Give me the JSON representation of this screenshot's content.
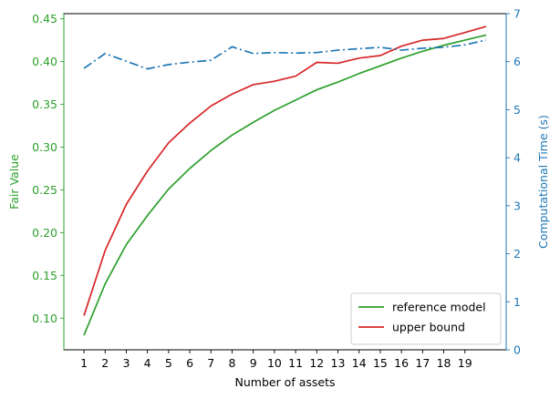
{
  "chart_data": {
    "type": "line",
    "xlabel": "Number of assets",
    "ylabel_left": "Fair Value",
    "ylabel_right": "Computational Time (s)",
    "x": [
      1,
      2,
      3,
      4,
      5,
      6,
      7,
      8,
      9,
      10,
      11,
      12,
      13,
      14,
      15,
      16,
      17,
      18,
      19,
      20
    ],
    "x_ticks": [
      "1",
      "2",
      "3",
      "4",
      "5",
      "6",
      "7",
      "8",
      "9",
      "10",
      "11",
      "12",
      "13",
      "14",
      "15",
      "16",
      "17",
      "18",
      "19"
    ],
    "xlim": [
      0.05,
      20.95
    ],
    "ylim_left": [
      0.063,
      0.456
    ],
    "ylim_right": [
      0,
      7
    ],
    "y_left_ticks": [
      "0.10",
      "0.15",
      "0.20",
      "0.25",
      "0.30",
      "0.35",
      "0.40",
      "0.45"
    ],
    "y_right_ticks": [
      "0",
      "1",
      "2",
      "3",
      "4",
      "5",
      "6",
      "7"
    ],
    "left_axis_color": "#2ca02c",
    "right_axis_color": "#1f77b4",
    "legend_position": "lower right",
    "series": [
      {
        "name": "reference model",
        "axis": "left",
        "color": "#2ca02c",
        "style": "solid",
        "values": [
          0.08,
          0.14,
          0.186,
          0.22,
          0.251,
          0.275,
          0.296,
          0.314,
          0.329,
          0.343,
          0.355,
          0.367,
          0.376,
          0.386,
          0.395,
          0.404,
          0.412,
          0.419,
          0.425,
          0.431
        ]
      },
      {
        "name": "upper bound",
        "axis": "left",
        "color": "#d62728",
        "style": "solid",
        "values": [
          0.103,
          0.179,
          0.233,
          0.272,
          0.305,
          0.328,
          0.348,
          0.362,
          0.373,
          0.377,
          0.383,
          0.399,
          0.398,
          0.404,
          0.407,
          0.418,
          0.425,
          0.427,
          0.434,
          0.441
        ]
      },
      {
        "axis": "right",
        "color": "#1f77b4",
        "style": "dashdot",
        "values": [
          5.86,
          6.17,
          6.01,
          5.85,
          5.94,
          5.99,
          6.03,
          6.31,
          6.17,
          6.19,
          6.18,
          6.19,
          6.24,
          6.27,
          6.3,
          6.24,
          6.28,
          6.3,
          6.35,
          6.45
        ]
      }
    ]
  }
}
